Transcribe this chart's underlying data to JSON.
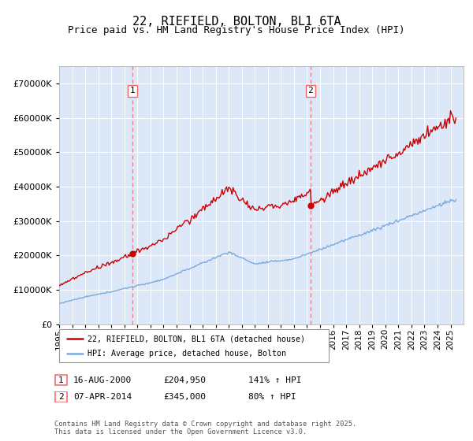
{
  "title": "22, RIEFIELD, BOLTON, BL1 6TA",
  "subtitle": "Price paid vs. HM Land Registry's House Price Index (HPI)",
  "title_fontsize": 11,
  "subtitle_fontsize": 9,
  "plot_bg_color": "#dce8f8",
  "legend1": "22, RIEFIELD, BOLTON, BL1 6TA (detached house)",
  "legend2": "HPI: Average price, detached house, Bolton",
  "sale1_date_str": "16-AUG-2000",
  "sale1_year": 2000,
  "sale1_month": 8,
  "sale1_day": 16,
  "sale1_price": 204950,
  "sale1_label": "£204,950",
  "sale1_hpi": "141% ↑ HPI",
  "sale2_date_str": "07-APR-2014",
  "sale2_year": 2014,
  "sale2_month": 4,
  "sale2_day": 7,
  "sale2_price": 345000,
  "sale2_label": "£345,000",
  "sale2_hpi": "80% ↑ HPI",
  "footer": "Contains HM Land Registry data © Crown copyright and database right 2025.\nThis data is licensed under the Open Government Licence v3.0.",
  "red_color": "#cc0000",
  "blue_color": "#7aaadd",
  "dashed_color": "#ee6666",
  "ylim_min": 0,
  "ylim_max": 750000,
  "ytick_step": 100000,
  "xstart_year": 1995,
  "xend_year": 2025
}
